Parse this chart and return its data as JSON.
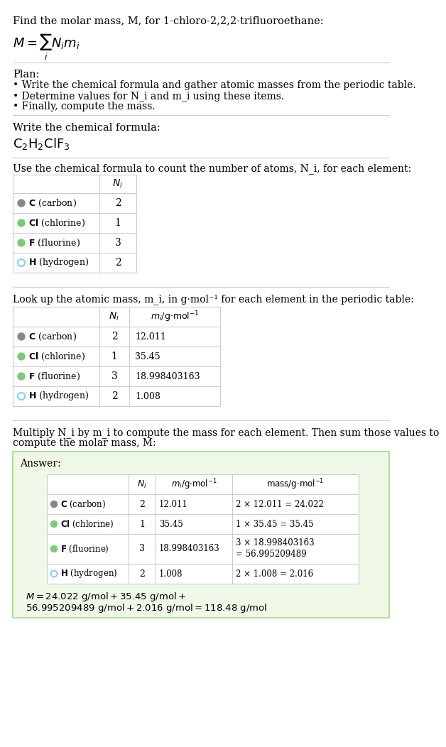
{
  "title_line": "Find the molar mass, M, for 1-chloro-2,2,2-trifluoroethane:",
  "plan_header": "Plan:",
  "plan_bullets": [
    "• Write the chemical formula and gather atomic masses from the periodic table.",
    "• Determine values for N_i and m_i using these items.",
    "• Finally, compute the mass."
  ],
  "chemical_formula_label": "Write the chemical formula:",
  "table1_label": "Use the chemical formula to count the number of atoms, N_i, for each element:",
  "table2_label": "Look up the atomic mass, m_i, in g·mol⁻¹ for each element in the periodic table:",
  "table3_label": "Multiply N_i by m_i to compute the mass for each element. Then sum those values to\ncompute the molar mass, M:",
  "elements": [
    {
      "symbol": "C",
      "name": "carbon",
      "color": "#888888",
      "filled": true,
      "N": 2,
      "m": "12.011",
      "mass_expr": "2 × 12.011 = 24.022"
    },
    {
      "symbol": "Cl",
      "name": "chlorine",
      "color": "#7dc87d",
      "filled": true,
      "N": 1,
      "m": "35.45",
      "mass_expr": "1 × 35.45 = 35.45"
    },
    {
      "symbol": "F",
      "name": "fluorine",
      "color": "#7dc87d",
      "filled": true,
      "N": 3,
      "m": "18.998403163",
      "mass_expr": "3 × 18.998403163\n= 56.995209489"
    },
    {
      "symbol": "H",
      "name": "hydrogen",
      "color": "#87CEEB",
      "filled": false,
      "N": 2,
      "m": "1.008",
      "mass_expr": "2 × 1.008 = 2.016"
    }
  ],
  "answer_box_color": "#f0f8e8",
  "answer_border_color": "#a8d888",
  "bg_color": "#ffffff",
  "separator_color": "#cccccc"
}
